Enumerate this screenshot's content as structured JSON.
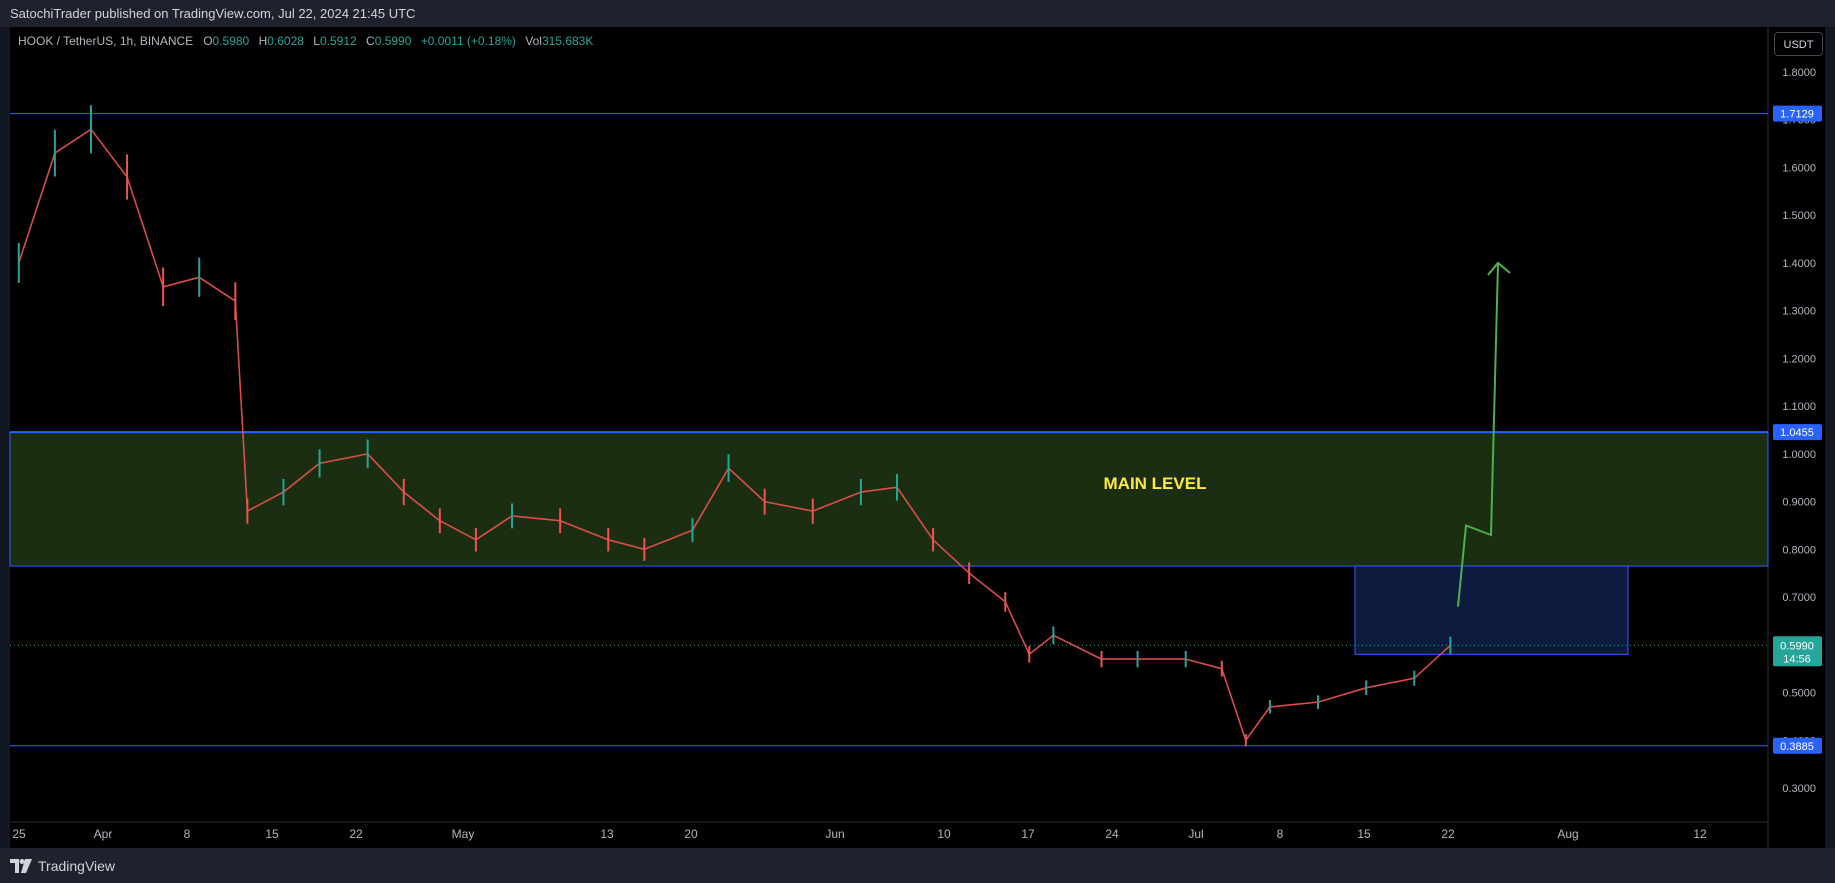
{
  "header": {
    "published": "SatochiTrader published on TradingView.com, Jul 22, 2024 21:45 UTC"
  },
  "legend": {
    "symbol": "HOOK / TetherUS, 1h, BINANCE",
    "open_label": "O",
    "open": "0.5980",
    "high_label": "H",
    "high": "0.6028",
    "low_label": "L",
    "low": "0.5912",
    "close_label": "C",
    "close": "0.5990",
    "change": "+0.0011 (+0.18%)",
    "vol_label": "Vol",
    "vol": "315.683K"
  },
  "currency_button": "USDT",
  "footer": {
    "brand": "TradingView"
  },
  "colors": {
    "up": "#26a69a",
    "down": "#ef5350",
    "level_line": "#2962ff",
    "zone_fill": "#1b2e12",
    "box_fill": "#0c1a3d",
    "arrow": "#4caf50",
    "annotation": "#ffeb3b"
  },
  "chart_data": {
    "type": "line",
    "title": "HOOK / TetherUS, 1h, BINANCE",
    "y_axis": {
      "range": [
        0.25,
        1.85
      ],
      "ticks": [
        "1.8000",
        "1.7000",
        "1.6000",
        "1.5000",
        "1.4000",
        "1.3000",
        "1.2000",
        "1.1000",
        "1.0000",
        "0.9000",
        "0.8000",
        "0.7000",
        "0.6000",
        "0.5000",
        "0.4000",
        "0.3000"
      ]
    },
    "x_axis": {
      "ticks": [
        "25",
        "Apr",
        "8",
        "15",
        "22",
        "May",
        "13",
        "20",
        "Jun",
        "10",
        "17",
        "24",
        "Jul",
        "8",
        "15",
        "22",
        "Aug",
        "12"
      ]
    },
    "series": [
      {
        "x": [
          "Mar 25",
          "Mar 28",
          "Mar 31",
          "Apr 3",
          "Apr 6",
          "Apr 9",
          "Apr 12",
          "Apr 13",
          "Apr 16",
          "Apr 19",
          "Apr 23",
          "Apr 26",
          "Apr 29",
          "May 2",
          "May 5",
          "May 9",
          "May 13",
          "May 16",
          "May 20",
          "May 23",
          "May 26",
          "May 30",
          "Jun 3",
          "Jun 6",
          "Jun 9",
          "Jun 12",
          "Jun 15",
          "Jun 17",
          "Jun 19",
          "Jun 23",
          "Jun 26",
          "Jun 30",
          "Jul 3",
          "Jul 5",
          "Jul 7",
          "Jul 11",
          "Jul 15",
          "Jul 19",
          "Jul 22"
        ],
        "values": [
          1.4,
          1.63,
          1.68,
          1.58,
          1.35,
          1.37,
          1.32,
          0.88,
          0.92,
          0.98,
          1.0,
          0.92,
          0.86,
          0.82,
          0.87,
          0.86,
          0.82,
          0.8,
          0.84,
          0.97,
          0.9,
          0.88,
          0.92,
          0.93,
          0.82,
          0.75,
          0.69,
          0.58,
          0.62,
          0.57,
          0.57,
          0.57,
          0.55,
          0.4,
          0.47,
          0.48,
          0.51,
          0.53,
          0.599
        ]
      }
    ],
    "horizontal_levels": [
      "1.7129",
      "1.0455",
      "0.3885"
    ],
    "zone": {
      "label": "MAIN LEVEL",
      "top": 1.0455,
      "bottom": 0.765
    },
    "entry_box": {
      "top": 0.765,
      "bottom": 0.58
    },
    "projection": {
      "values": [
        0.68,
        0.85,
        0.83,
        1.4
      ]
    },
    "last_price": {
      "value": "0.5990",
      "countdown": "14:56"
    }
  }
}
